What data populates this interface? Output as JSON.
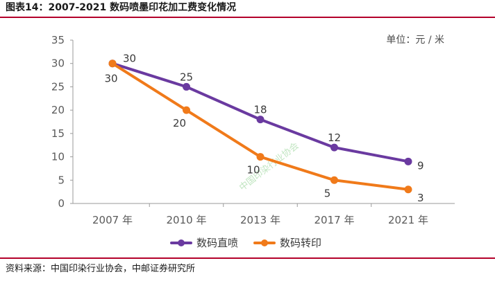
{
  "figure_title": "图表14：2007-2021 数码喷墨印花加工费变化情况",
  "source_note": "资料来源：中国印染行业协会，中邮证券研究所",
  "watermark": "中国印染行业协会",
  "colors": {
    "rule": "#b3002a",
    "series_1": "#6a3aa0",
    "series_2": "#f07a1a"
  },
  "chart_data": {
    "type": "line",
    "unit_label": "单位：元 / 米",
    "categories": [
      "2007 年",
      "2010 年",
      "2013 年",
      "2017 年",
      "2021 年"
    ],
    "ylim": [
      0,
      35
    ],
    "yticks": [
      "0",
      "5",
      "10",
      "15",
      "20",
      "25",
      "30",
      "35"
    ],
    "grid": false,
    "legend_position": "bottom",
    "series": [
      {
        "name": "数码直喷",
        "values": [
          30,
          25,
          18,
          12,
          9
        ],
        "data_labels": [
          "30",
          "25",
          "18",
          "12",
          "9"
        ],
        "color": "#6a3aa0"
      },
      {
        "name": "数码转印",
        "values": [
          30,
          20,
          10,
          5,
          3
        ],
        "data_labels": [
          "30",
          "20",
          "10",
          "5",
          "3"
        ],
        "color": "#f07a1a"
      }
    ]
  }
}
